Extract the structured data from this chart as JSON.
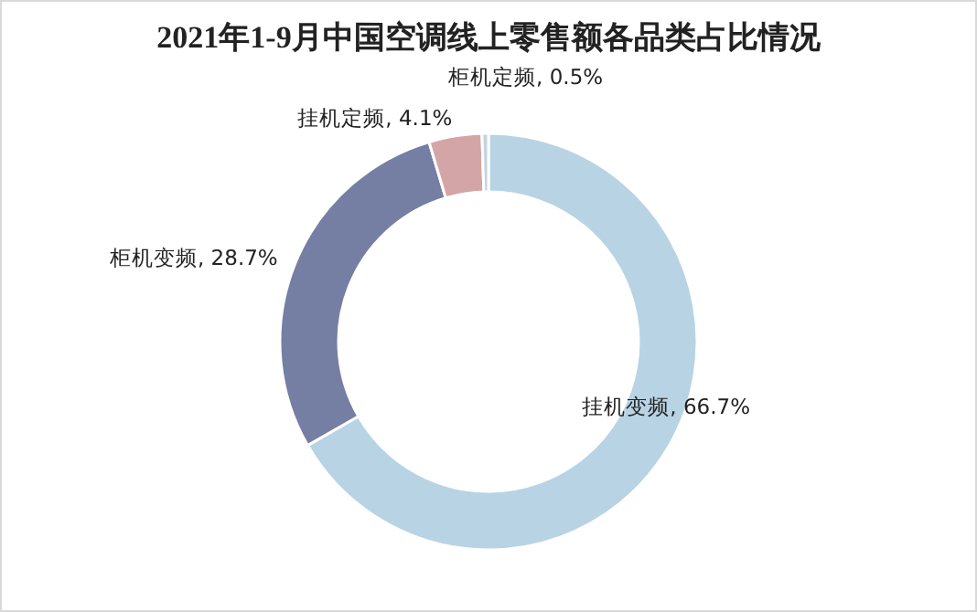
{
  "chart_data": {
    "type": "donut",
    "title": "2021年1-9月中国空调线上零售额各品类占比情况",
    "categories": [
      "挂机变频",
      "柜机变频",
      "挂机定频",
      "柜机定频"
    ],
    "values": [
      66.7,
      28.7,
      4.1,
      0.5
    ],
    "value_labels": [
      "66.7%",
      "28.7%",
      "4.1%",
      "0.5%"
    ],
    "colors": [
      "#b8d3e4",
      "#757ea3",
      "#d4a5a6",
      "#c5d3dc"
    ]
  }
}
